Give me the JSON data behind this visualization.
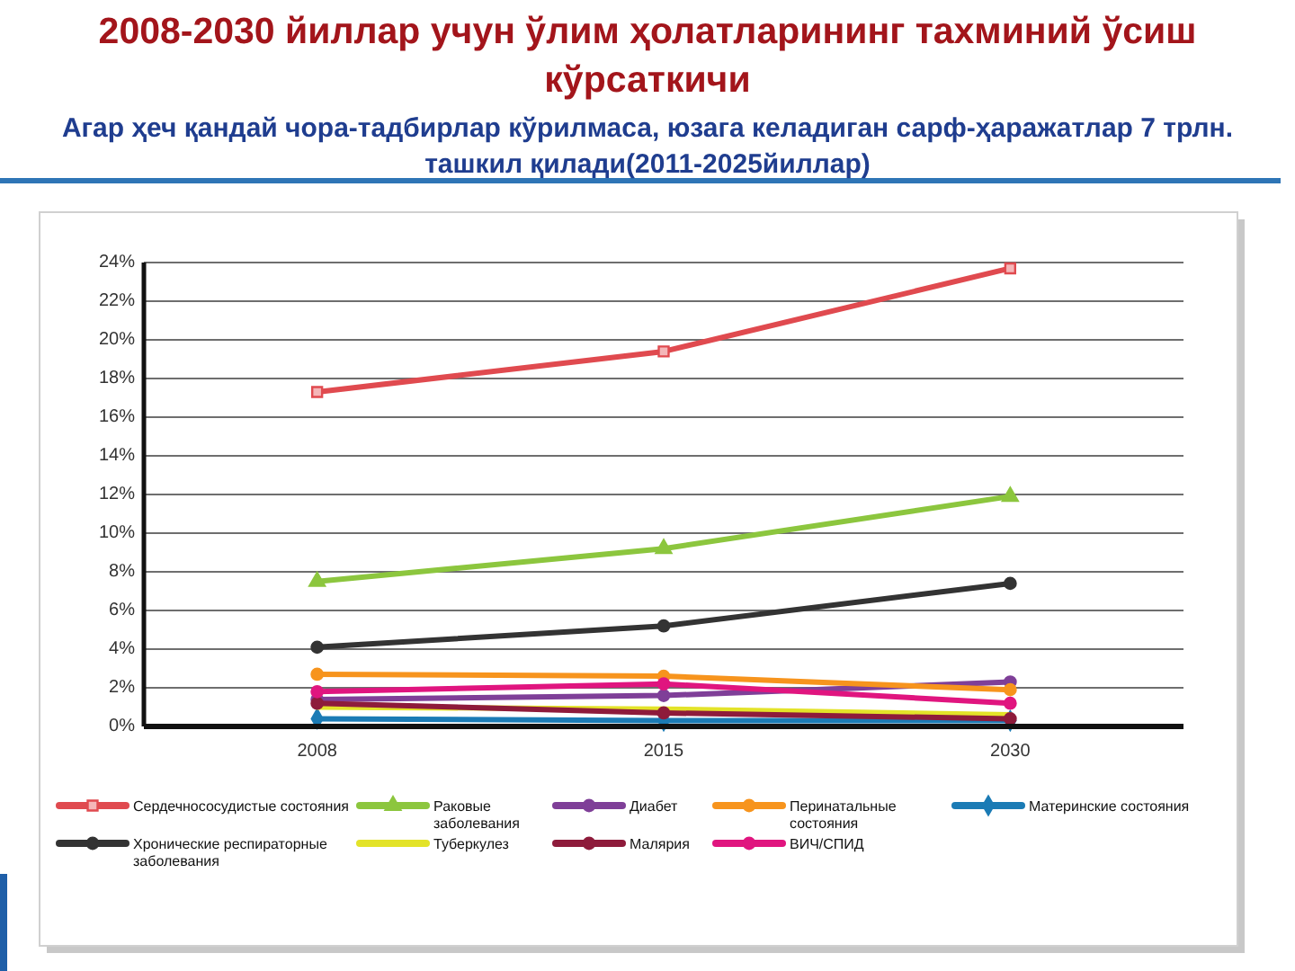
{
  "chart_data": {
    "type": "line",
    "title": "2008-2030 йиллар учун ўлим ҳолатларининг тахминий ўсиш кўрсаткичи",
    "subtitle": "Агар ҳеч қандай чора-тадбирлар кўрилмаса, юзага келадиган сарф-ҳаражатлар 7 трлн. ташкил қилади(2011-2025йиллар)",
    "categories": [
      "2008",
      "2015",
      "2030"
    ],
    "series": [
      {
        "name": "Сердечнососудистые состояния",
        "color": "#e04a4f",
        "marker": "square",
        "values": [
          17.3,
          19.4,
          23.7
        ]
      },
      {
        "name": "Раковые заболевания",
        "color": "#8cc63e",
        "marker": "triangle",
        "values": [
          7.5,
          9.2,
          11.9
        ]
      },
      {
        "name": "Диабет",
        "color": "#7f3f98",
        "marker": "circle",
        "values": [
          1.4,
          1.6,
          2.3
        ]
      },
      {
        "name": "Перинатальные состояния",
        "color": "#f7941d",
        "marker": "circle",
        "values": [
          2.7,
          2.6,
          1.9
        ]
      },
      {
        "name": "Материнские состояния",
        "color": "#1b7bb5",
        "marker": "diamond",
        "values": [
          0.4,
          0.3,
          0.3
        ]
      },
      {
        "name": "Хронические респираторные заболевания",
        "color": "#333333",
        "marker": "circle",
        "values": [
          4.1,
          5.2,
          7.4
        ]
      },
      {
        "name": "Туберкулез",
        "color": "#e3e329",
        "marker": "none",
        "values": [
          1.0,
          0.9,
          0.6
        ]
      },
      {
        "name": "Малярия",
        "color": "#8e1b3b",
        "marker": "circle",
        "values": [
          1.2,
          0.7,
          0.4
        ]
      },
      {
        "name": "ВИЧ/СПИД",
        "color": "#e0157f",
        "marker": "circle",
        "values": [
          1.8,
          2.2,
          1.2
        ]
      }
    ],
    "ylim": [
      0,
      24
    ],
    "yticks": [
      {
        "value": 0,
        "label": "0%"
      },
      {
        "value": 2,
        "label": "2%"
      },
      {
        "value": 4,
        "label": "4%"
      },
      {
        "value": 6,
        "label": "6%"
      },
      {
        "value": 8,
        "label": "8%"
      },
      {
        "value": 10,
        "label": "10%"
      },
      {
        "value": 12,
        "label": "12%"
      },
      {
        "value": 14,
        "label": "14%"
      },
      {
        "value": 16,
        "label": "16%"
      },
      {
        "value": 18,
        "label": "18%"
      },
      {
        "value": 20,
        "label": "20%"
      },
      {
        "value": 22,
        "label": "22%"
      },
      {
        "value": 24,
        "label": "24%"
      }
    ],
    "grid": "y",
    "legend": "bottom"
  }
}
